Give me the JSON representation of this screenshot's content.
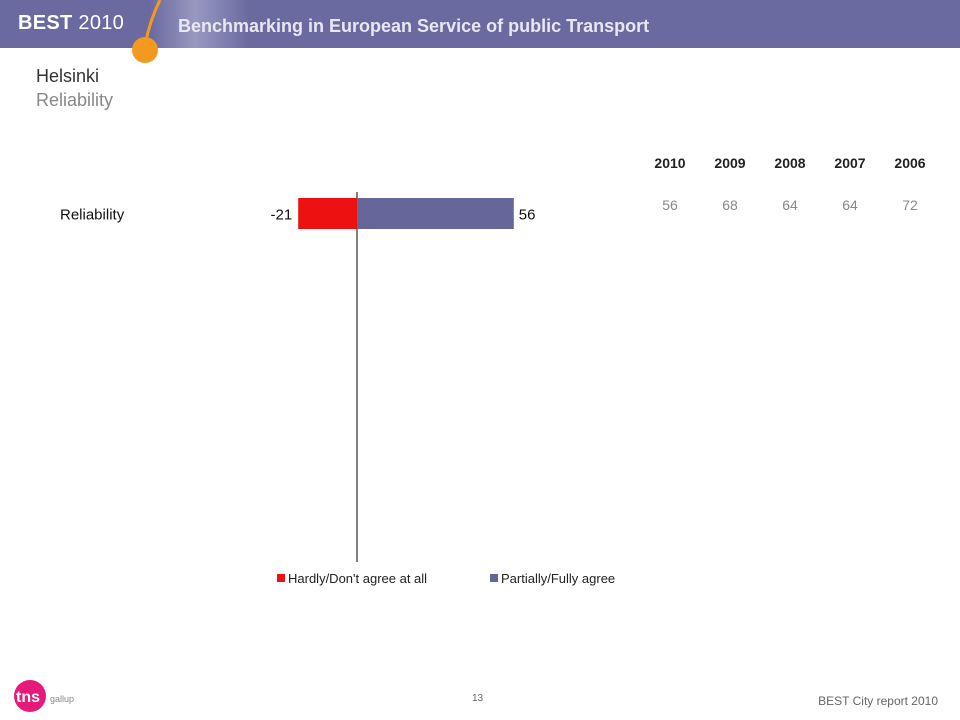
{
  "header": {
    "brand": "BEST",
    "year": "2010",
    "title": "Benchmarking in European Service of public Transport"
  },
  "page": {
    "city": "Helsinki",
    "subject": "Reliability"
  },
  "chart_data": {
    "type": "bar",
    "orientation": "horizontal-diverging",
    "categories": [
      "Reliability"
    ],
    "series": [
      {
        "name": "Hardly/Don't agree at all",
        "values": [
          -21
        ],
        "color": "#ee1111"
      },
      {
        "name": "Partially/Fully agree",
        "values": [
          56
        ],
        "color": "#66669a"
      }
    ],
    "data_labels": [
      "-21",
      "56"
    ],
    "legend_position": "bottom"
  },
  "years": {
    "labels": [
      "2010",
      "2009",
      "2008",
      "2007",
      "2006"
    ],
    "values": [
      "56",
      "68",
      "64",
      "64",
      "72"
    ]
  },
  "footer": {
    "page_number": "13",
    "report": "BEST City report 2010",
    "logo_text": "tns",
    "logo_sub": "gallup"
  }
}
